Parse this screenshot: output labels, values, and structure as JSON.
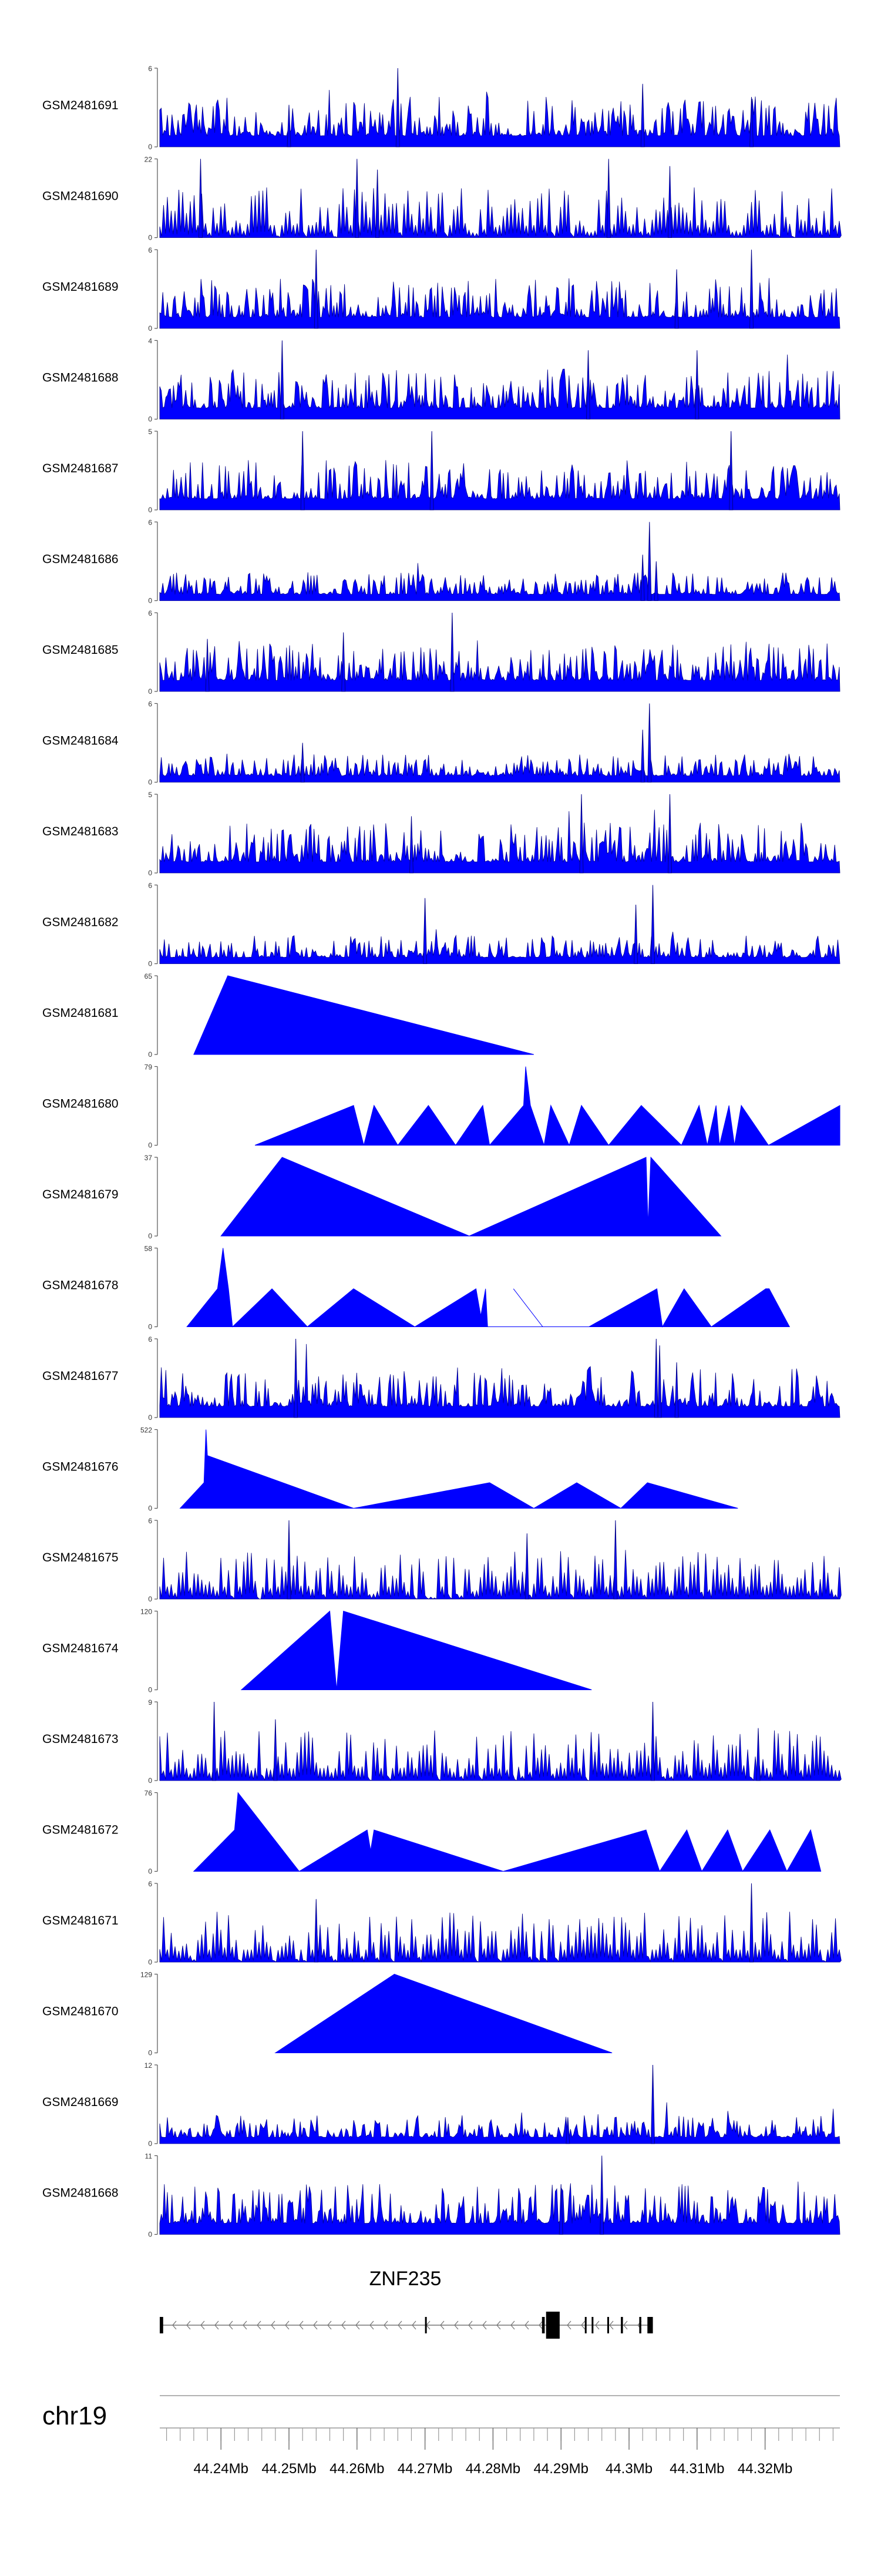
{
  "chart_data": {
    "type": "area",
    "title": "",
    "chromosome": "chr19",
    "xlim": [
      44.231,
      44.331
    ],
    "x_unit": "Mb",
    "x_ticks": [
      {
        "value": 44.24,
        "label": "44.24Mb"
      },
      {
        "value": 44.25,
        "label": "44.25Mb"
      },
      {
        "value": 44.26,
        "label": "44.26Mb"
      },
      {
        "value": 44.27,
        "label": "44.27Mb"
      },
      {
        "value": 44.28,
        "label": "44.28Mb"
      },
      {
        "value": 44.29,
        "label": "44.29Mb"
      },
      {
        "value": 44.3,
        "label": "44.3Mb"
      },
      {
        "value": 44.31,
        "label": "44.31Mb"
      },
      {
        "value": 44.32,
        "label": "44.32Mb"
      }
    ],
    "tracks": [
      {
        "name": "GSM2481691",
        "ymax": 6,
        "ymax_label": "6",
        "ymin_label": "0",
        "style": "dense",
        "seed": 11,
        "peaks": [
          [
            44.266,
            6
          ],
          [
            44.302,
            4.8
          ],
          [
            44.318,
            3.8
          ],
          [
            44.25,
            3.2
          ]
        ]
      },
      {
        "name": "GSM2481690",
        "ymax": 22,
        "ymax_label": "22",
        "ymin_label": "0",
        "style": "spiky",
        "seed": 12,
        "peaks": [
          [
            44.237,
            22
          ],
          [
            44.26,
            22
          ],
          [
            44.297,
            22
          ],
          [
            44.263,
            19
          ],
          [
            44.306,
            20
          ]
        ]
      },
      {
        "name": "GSM2481689",
        "ymax": 6,
        "ymax_label": "6",
        "ymin_label": "0",
        "style": "dense",
        "seed": 13,
        "peaks": [
          [
            44.254,
            6
          ],
          [
            44.318,
            6
          ],
          [
            44.307,
            4.5
          ]
        ]
      },
      {
        "name": "GSM2481688",
        "ymax": 4,
        "ymax_label": "4",
        "ymin_label": "0",
        "style": "dense",
        "seed": 14,
        "peaks": [
          [
            44.249,
            4
          ],
          [
            44.294,
            3.5
          ],
          [
            44.31,
            3.5
          ]
        ]
      },
      {
        "name": "GSM2481687",
        "ymax": 5,
        "ymax_label": "5",
        "ymin_label": "0",
        "style": "dense",
        "seed": 15,
        "peaks": [
          [
            44.252,
            5
          ],
          [
            44.271,
            5
          ],
          [
            44.315,
            5
          ]
        ]
      },
      {
        "name": "GSM2481686",
        "ymax": 6,
        "ymax_label": "6",
        "ymin_label": "0",
        "style": "sparse",
        "seed": 16,
        "peaks": [
          [
            44.303,
            6
          ],
          [
            44.302,
            3.5
          ],
          [
            44.304,
            3
          ]
        ]
      },
      {
        "name": "GSM2481685",
        "ymax": 6,
        "ymax_label": "6",
        "ymin_label": "0",
        "style": "dense",
        "seed": 17,
        "peaks": [
          [
            44.274,
            6
          ],
          [
            44.238,
            4
          ],
          [
            44.258,
            4.5
          ]
        ]
      },
      {
        "name": "GSM2481684",
        "ymax": 6,
        "ymax_label": "6",
        "ymin_label": "0",
        "style": "sparse",
        "seed": 18,
        "peaks": [
          [
            44.303,
            6
          ],
          [
            44.302,
            4
          ],
          [
            44.252,
            3
          ]
        ]
      },
      {
        "name": "GSM2481683",
        "ymax": 5,
        "ymax_label": "5",
        "ymin_label": "0",
        "style": "dense",
        "seed": 19,
        "peaks": [
          [
            44.293,
            5
          ],
          [
            44.306,
            5
          ],
          [
            44.268,
            3.6
          ]
        ]
      },
      {
        "name": "GSM2481682",
        "ymax": 6,
        "ymax_label": "6",
        "ymin_label": "0",
        "style": "sparse",
        "seed": 20,
        "peaks": [
          [
            44.3035,
            6
          ],
          [
            44.27,
            5
          ],
          [
            44.301,
            4.5
          ]
        ]
      },
      {
        "name": "GSM2481681",
        "ymax": 65,
        "ymax_label": "65",
        "ymin_label": "0",
        "style": "tri",
        "seed": 21,
        "points": [
          [
            44.236,
            0
          ],
          [
            44.241,
            65
          ],
          [
            44.286,
            0
          ]
        ]
      },
      {
        "name": "GSM2481680",
        "ymax": 79,
        "ymax_label": "79",
        "ymin_label": "0",
        "style": "tri",
        "seed": 22,
        "points": [
          [
            44.245,
            0
          ],
          [
            44.2595,
            40
          ],
          [
            44.261,
            0
          ],
          [
            44.2625,
            40
          ],
          [
            44.266,
            0
          ],
          [
            44.2705,
            40
          ],
          [
            44.2745,
            0
          ],
          [
            44.2785,
            40
          ],
          [
            44.2795,
            0
          ],
          [
            44.2845,
            40
          ],
          [
            44.2848,
            79
          ],
          [
            44.2855,
            40
          ],
          [
            44.2875,
            0
          ],
          [
            44.2885,
            40
          ],
          [
            44.2912,
            0
          ],
          [
            44.293,
            40
          ],
          [
            44.297,
            0
          ],
          [
            44.3018,
            40
          ],
          [
            44.3077,
            0
          ],
          [
            44.3103,
            40
          ],
          [
            44.3115,
            0
          ],
          [
            44.3128,
            40
          ],
          [
            44.3133,
            0
          ],
          [
            44.3147,
            40
          ],
          [
            44.3155,
            0
          ],
          [
            44.3165,
            40
          ],
          [
            44.3205,
            0
          ],
          [
            44.331,
            40
          ],
          [
            44.331,
            0
          ]
        ]
      },
      {
        "name": "GSM2481679",
        "ymax": 37,
        "ymax_label": "37",
        "ymin_label": "0",
        "style": "tri",
        "seed": 23,
        "points": [
          [
            44.24,
            0
          ],
          [
            44.249,
            37
          ],
          [
            44.2765,
            0
          ],
          [
            44.3025,
            37
          ],
          [
            44.3028,
            5
          ],
          [
            44.3032,
            37
          ],
          [
            44.3135,
            0
          ]
        ]
      },
      {
        "name": "GSM2481678",
        "ymax": 58,
        "ymax_label": "58",
        "ymin_label": "0",
        "style": "tri",
        "seed": 24,
        "points": [
          [
            44.235,
            0
          ],
          [
            44.2395,
            28
          ],
          [
            44.2403,
            58
          ],
          [
            44.2411,
            28
          ],
          [
            44.2417,
            0
          ],
          [
            44.2475,
            28
          ],
          [
            44.2527,
            0
          ],
          [
            44.2595,
            28
          ],
          [
            44.2685,
            0
          ],
          [
            44.2775,
            28
          ],
          [
            44.2782,
            8
          ],
          [
            44.2789,
            28
          ],
          [
            44.2792,
            0
          ],
          [
            44.2873,
            0
          ],
          [
            44.283,
            28
          ],
          [
            44.2873,
            0
          ],
          [
            44.2941,
            0
          ],
          [
            44.3041,
            28
          ],
          [
            44.3049,
            0
          ],
          [
            44.3081,
            28
          ],
          [
            44.3121,
            0
          ],
          [
            44.3201,
            28
          ],
          [
            44.3206,
            28
          ],
          [
            44.3236,
            0
          ]
        ]
      },
      {
        "name": "GSM2481677",
        "ymax": 6,
        "ymax_label": "6",
        "ymin_label": "0",
        "style": "dense",
        "seed": 25,
        "peaks": [
          [
            44.251,
            6
          ],
          [
            44.304,
            6
          ],
          [
            44.3045,
            5.5
          ],
          [
            44.307,
            4.2
          ]
        ]
      },
      {
        "name": "GSM2481676",
        "ymax": 522,
        "ymax_label": "522",
        "ymin_label": "0",
        "style": "tri",
        "seed": 26,
        "points": [
          [
            44.234,
            0
          ],
          [
            44.2375,
            170
          ],
          [
            44.2378,
            522
          ],
          [
            44.238,
            350
          ],
          [
            44.2595,
            0
          ],
          [
            44.2795,
            170
          ],
          [
            44.286,
            0
          ],
          [
            44.2923,
            170
          ],
          [
            44.2988,
            0
          ],
          [
            44.3027,
            170
          ],
          [
            44.316,
            0
          ]
        ]
      },
      {
        "name": "GSM2481675",
        "ymax": 6,
        "ymax_label": "6",
        "ymin_label": "0",
        "style": "spiky",
        "seed": 27,
        "peaks": [
          [
            44.25,
            6
          ],
          [
            44.298,
            6
          ],
          [
            44.285,
            5
          ]
        ]
      },
      {
        "name": "GSM2481674",
        "ymax": 120,
        "ymax_label": "120",
        "ymin_label": "0",
        "style": "tri",
        "seed": 28,
        "points": [
          [
            44.243,
            0
          ],
          [
            44.256,
            120
          ],
          [
            44.257,
            0
          ],
          [
            44.258,
            120
          ],
          [
            44.2945,
            0
          ]
        ]
      },
      {
        "name": "GSM2481673",
        "ymax": 9,
        "ymax_label": "9",
        "ymin_label": "0",
        "style": "spiky",
        "seed": 29,
        "peaks": [
          [
            44.239,
            9
          ],
          [
            44.3035,
            9
          ],
          [
            44.248,
            7
          ],
          [
            44.319,
            6
          ]
        ]
      },
      {
        "name": "GSM2481672",
        "ymax": 76,
        "ymax_label": "76",
        "ymin_label": "0",
        "style": "tri",
        "seed": 30,
        "points": [
          [
            44.236,
            0
          ],
          [
            44.242,
            40
          ],
          [
            44.2425,
            76
          ],
          [
            44.2515,
            0
          ],
          [
            44.2615,
            40
          ],
          [
            44.262,
            20
          ],
          [
            44.2625,
            40
          ],
          [
            44.2815,
            0
          ],
          [
            44.3025,
            40
          ],
          [
            44.3045,
            0
          ],
          [
            44.3085,
            40
          ],
          [
            44.3107,
            0
          ],
          [
            44.3145,
            40
          ],
          [
            44.3167,
            0
          ],
          [
            44.3207,
            40
          ],
          [
            44.3232,
            0
          ],
          [
            44.3267,
            40
          ],
          [
            44.3282,
            0
          ]
        ]
      },
      {
        "name": "GSM2481671",
        "ymax": 6,
        "ymax_label": "6",
        "ymin_label": "0",
        "style": "spiky",
        "seed": 31,
        "peaks": [
          [
            44.318,
            6
          ],
          [
            44.254,
            4.8
          ]
        ]
      },
      {
        "name": "GSM2481670",
        "ymax": 129,
        "ymax_label": "129",
        "ymin_label": "0",
        "style": "tri",
        "seed": 32,
        "points": [
          [
            44.248,
            0
          ],
          [
            44.2655,
            129
          ],
          [
            44.2975,
            0
          ]
        ]
      },
      {
        "name": "GSM2481669",
        "ymax": 12,
        "ymax_label": "12",
        "ymin_label": "0",
        "style": "sparse",
        "seed": 33,
        "peaks": [
          [
            44.3035,
            12
          ],
          [
            44.291,
            4
          ]
        ]
      },
      {
        "name": "GSM2481668",
        "ymax": 11,
        "ymax_label": "11",
        "ymin_label": "0",
        "style": "dense",
        "seed": 34,
        "peaks": [
          [
            44.296,
            11
          ],
          [
            44.29,
            7
          ]
        ]
      }
    ],
    "gene": {
      "name": "ZNF235",
      "strand": "-",
      "start": 44.231,
      "end": 44.3035,
      "exons": [
        [
          44.231,
          44.2315
        ],
        [
          44.27,
          44.2702
        ],
        [
          44.2872,
          44.2876
        ],
        [
          44.2878,
          44.2898
        ],
        [
          44.2935,
          44.2937
        ],
        [
          44.2945,
          44.2947
        ],
        [
          44.2968,
          44.297
        ],
        [
          44.2988,
          44.2991
        ],
        [
          44.3015,
          44.3018
        ],
        [
          44.3027,
          44.3035
        ]
      ]
    }
  }
}
